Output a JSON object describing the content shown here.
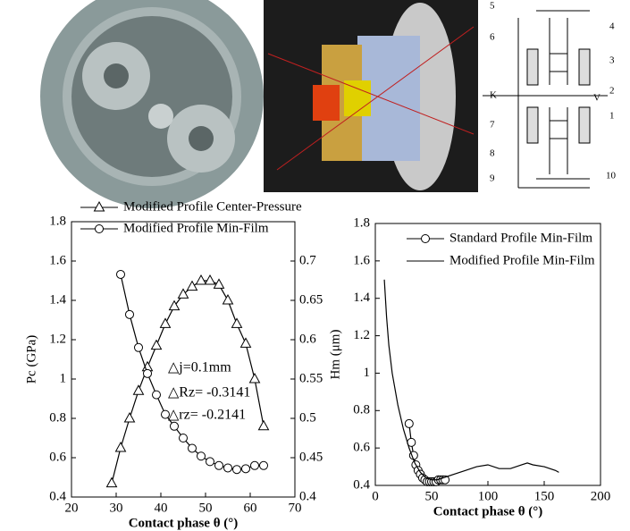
{
  "schematic": {
    "labels": [
      "5",
      "4",
      "6",
      "3",
      "2",
      "K",
      "V",
      "1",
      "7",
      "8",
      "9",
      "10"
    ]
  },
  "chart_data": [
    {
      "type": "line",
      "x_label": "Contact phase θ (°)",
      "y_label": "Pc (GPa)",
      "xlim": [
        20,
        70
      ],
      "xticks": [
        20,
        30,
        40,
        50,
        60,
        70
      ],
      "ylim": [
        0.4,
        1.8
      ],
      "yticks": [
        0.4,
        0.6,
        0.8,
        1,
        1.2,
        1.4,
        1.6,
        1.8
      ],
      "y2lim": [
        0.4,
        0.75
      ],
      "y2ticks": [
        0.4,
        0.45,
        0.5,
        0.55,
        0.6,
        0.65,
        0.7
      ],
      "annotations": [
        "△j=0.1mm",
        "△Rz= -0.3141",
        "△rz= -0.2141"
      ],
      "series": [
        {
          "name": "Modified Profile Center-Pressure",
          "color": "#000",
          "marker": "triangle",
          "x": [
            29,
            31,
            33,
            35,
            37,
            39,
            41,
            43,
            45,
            47,
            49,
            51,
            53,
            55,
            57,
            59,
            61,
            63
          ],
          "values": [
            0.47,
            0.65,
            0.8,
            0.94,
            1.06,
            1.17,
            1.28,
            1.37,
            1.43,
            1.47,
            1.5,
            1.5,
            1.48,
            1.4,
            1.28,
            1.18,
            1.0,
            0.76
          ]
        },
        {
          "name": "Modified Profile Min-Film",
          "color": "#000",
          "marker": "circle",
          "axis": "y2",
          "x": [
            31,
            33,
            35,
            37,
            39,
            41,
            43,
            45,
            47,
            49,
            51,
            53,
            55,
            57,
            59,
            61,
            63
          ],
          "values": [
            0.683,
            0.632,
            0.59,
            0.557,
            0.53,
            0.505,
            0.49,
            0.475,
            0.462,
            0.452,
            0.445,
            0.44,
            0.437,
            0.435,
            0.436,
            0.44,
            0.44
          ]
        }
      ]
    },
    {
      "type": "line",
      "x_label": "Contact phase θ (°)",
      "y_label": "Hm (μm)",
      "xlim": [
        0,
        200
      ],
      "xticks": [
        0,
        50,
        100,
        150,
        200
      ],
      "ylim": [
        0.4,
        1.8
      ],
      "yticks": [
        0.4,
        0.6,
        0.8,
        1,
        1.2,
        1.4,
        1.6,
        1.8
      ],
      "series": [
        {
          "name": "Standard Profile Min-Film",
          "color": "#000",
          "marker": "circle",
          "x": [
            30,
            32,
            34,
            36,
            38,
            40,
            42,
            44,
            46,
            48,
            50,
            52,
            54,
            56,
            58,
            60,
            62
          ],
          "values": [
            0.73,
            0.63,
            0.56,
            0.51,
            0.48,
            0.46,
            0.44,
            0.43,
            0.42,
            0.42,
            0.42,
            0.42,
            0.42,
            0.43,
            0.43,
            0.43,
            0.43
          ]
        },
        {
          "name": "Modified Profile Min-Film",
          "color": "#000",
          "marker": null,
          "x": [
            8,
            10,
            12,
            15,
            20,
            25,
            30,
            35,
            40,
            45,
            50,
            55,
            60,
            70,
            80,
            90,
            100,
            110,
            120,
            130,
            135,
            140,
            150,
            160,
            163
          ],
          "values": [
            1.5,
            1.3,
            1.15,
            1.0,
            0.83,
            0.7,
            0.6,
            0.52,
            0.47,
            0.44,
            0.43,
            0.43,
            0.44,
            0.46,
            0.48,
            0.5,
            0.51,
            0.49,
            0.49,
            0.51,
            0.52,
            0.51,
            0.5,
            0.48,
            0.47
          ]
        }
      ]
    }
  ]
}
